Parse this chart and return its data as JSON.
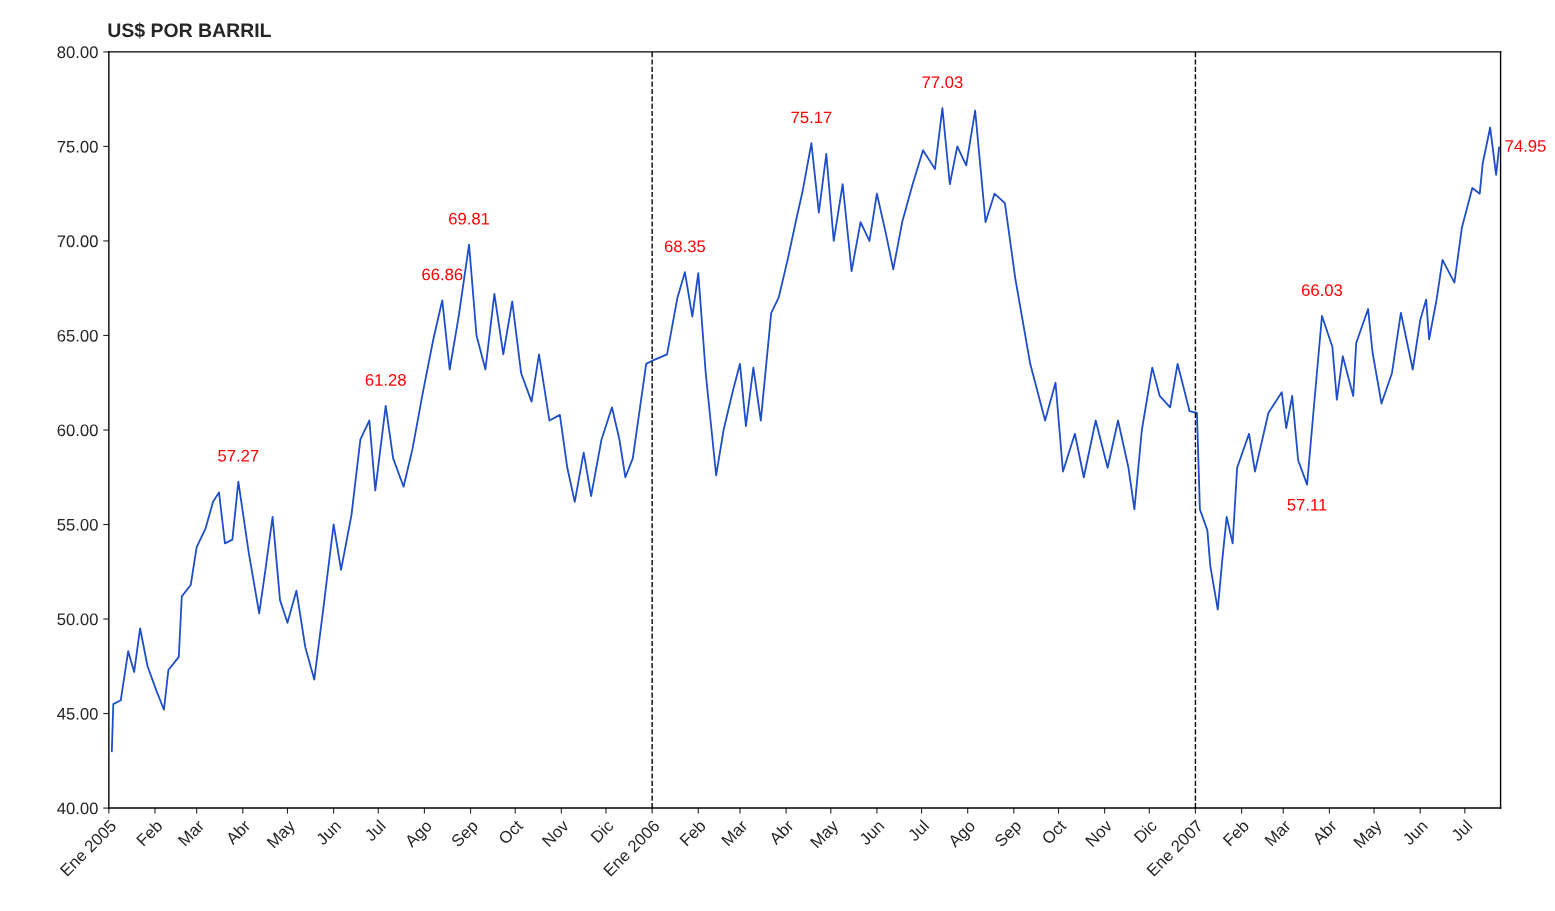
{
  "chart_data": {
    "type": "line",
    "title": "US$ POR BARRIL",
    "x": [
      "2005-01-03",
      "2005-01-04",
      "2005-01-09",
      "2005-01-14",
      "2005-01-18",
      "2005-01-22",
      "2005-01-27",
      "2005-02-02",
      "2005-02-07",
      "2005-02-10",
      "2005-02-17",
      "2005-02-19",
      "2005-02-25",
      "2005-03-01",
      "2005-03-07",
      "2005-03-12",
      "2005-03-16",
      "2005-03-20",
      "2005-03-25",
      "2005-03-29",
      "2005-04-05",
      "2005-04-12",
      "2005-04-16",
      "2005-04-21",
      "2005-04-26",
      "2005-05-01",
      "2005-05-07",
      "2005-05-13",
      "2005-05-19",
      "2005-05-25",
      "2005-06-01",
      "2005-06-06",
      "2005-06-13",
      "2005-06-19",
      "2005-06-25",
      "2005-06-29",
      "2005-07-06",
      "2005-07-11",
      "2005-07-18",
      "2005-07-24",
      "2005-07-31",
      "2005-08-07",
      "2005-08-13",
      "2005-08-18",
      "2005-08-24",
      "2005-08-31",
      "2005-09-05",
      "2005-09-11",
      "2005-09-17",
      "2005-09-23",
      "2005-09-29",
      "2005-10-05",
      "2005-10-12",
      "2005-10-17",
      "2005-10-24",
      "2005-10-31",
      "2005-11-05",
      "2005-11-10",
      "2005-11-16",
      "2005-11-21",
      "2005-11-28",
      "2005-12-05",
      "2005-12-10",
      "2005-12-14",
      "2005-12-19",
      "2005-12-28",
      "2006-01-02",
      "2006-01-11",
      "2006-01-18",
      "2006-01-23",
      "2006-01-28",
      "2006-02-01",
      "2006-02-06",
      "2006-02-13",
      "2006-02-18",
      "2006-02-24",
      "2006-03-01",
      "2006-03-05",
      "2006-03-10",
      "2006-03-15",
      "2006-03-22",
      "2006-03-27",
      "2006-04-02",
      "2006-04-08",
      "2006-04-12",
      "2006-04-18",
      "2006-04-23",
      "2006-04-28",
      "2006-05-03",
      "2006-05-09",
      "2006-05-15",
      "2006-05-21",
      "2006-05-27",
      "2006-06-01",
      "2006-06-07",
      "2006-06-12",
      "2006-06-18",
      "2006-06-25",
      "2006-07-02",
      "2006-07-10",
      "2006-07-15",
      "2006-07-20",
      "2006-07-25",
      "2006-07-31",
      "2006-08-06",
      "2006-08-13",
      "2006-08-19",
      "2006-08-26",
      "2006-09-02",
      "2006-09-12",
      "2006-09-22",
      "2006-09-29",
      "2006-10-04",
      "2006-10-12",
      "2006-10-18",
      "2006-10-26",
      "2006-11-03",
      "2006-11-10",
      "2006-11-17",
      "2006-11-21",
      "2006-11-26",
      "2006-12-03",
      "2006-12-08",
      "2006-12-15",
      "2006-12-20",
      "2006-12-28",
      "2007-01-02",
      "2007-01-04",
      "2007-01-09",
      "2007-01-11",
      "2007-01-16",
      "2007-01-19",
      "2007-01-22",
      "2007-01-26",
      "2007-01-29",
      "2007-02-02",
      "2007-02-06",
      "2007-02-10",
      "2007-02-19",
      "2007-02-28",
      "2007-03-03",
      "2007-03-07",
      "2007-03-11",
      "2007-03-17",
      "2007-03-21",
      "2007-03-27",
      "2007-04-03",
      "2007-04-06",
      "2007-04-10",
      "2007-04-17",
      "2007-04-19",
      "2007-04-27",
      "2007-04-30",
      "2007-05-06",
      "2007-05-13",
      "2007-05-19",
      "2007-05-27",
      "2007-06-01",
      "2007-06-05",
      "2007-06-07",
      "2007-06-12",
      "2007-06-16",
      "2007-06-24",
      "2007-06-29",
      "2007-07-06",
      "2007-07-11",
      "2007-07-13",
      "2007-07-18",
      "2007-07-22",
      "2007-07-24"
    ],
    "series": [
      {
        "color": "#1f4fc8",
        "values": [
          43.0,
          45.5,
          45.7,
          48.3,
          47.2,
          49.5,
          47.5,
          46.2,
          45.2,
          47.3,
          48.0,
          51.2,
          51.8,
          53.8,
          54.8,
          56.2,
          56.7,
          54.0,
          54.2,
          57.27,
          53.5,
          50.3,
          52.5,
          55.4,
          51.0,
          49.8,
          51.5,
          48.5,
          46.8,
          50.5,
          55.0,
          52.6,
          55.5,
          59.5,
          60.5,
          56.8,
          61.28,
          58.5,
          57.0,
          59.0,
          62.0,
          64.8,
          66.86,
          63.2,
          66.0,
          69.81,
          65.0,
          63.2,
          67.2,
          64.0,
          66.8,
          63.0,
          61.5,
          64.0,
          60.5,
          60.8,
          58.0,
          56.2,
          58.8,
          56.5,
          59.5,
          61.2,
          59.5,
          57.5,
          58.5,
          63.5,
          63.7,
          64.0,
          67.0,
          68.35,
          66.0,
          68.3,
          63.0,
          57.6,
          60.0,
          62.0,
          63.5,
          60.2,
          63.3,
          60.5,
          66.2,
          67.0,
          69.0,
          71.2,
          72.6,
          75.17,
          71.5,
          74.6,
          70.0,
          73.0,
          68.4,
          71.0,
          70.0,
          72.5,
          70.4,
          68.5,
          71.0,
          73.0,
          74.8,
          73.8,
          77.03,
          73.0,
          75.0,
          74.0,
          76.9,
          71.0,
          72.5,
          72.0,
          68.0,
          63.5,
          60.5,
          62.5,
          57.8,
          59.8,
          57.5,
          60.5,
          58.0,
          60.5,
          58.0,
          55.8,
          60.0,
          63.3,
          61.8,
          61.2,
          63.5,
          61.0,
          60.9,
          55.8,
          54.7,
          52.8,
          50.5,
          53.1,
          55.4,
          54.0,
          58.0,
          58.9,
          59.8,
          57.8,
          60.9,
          62.0,
          60.1,
          61.8,
          58.4,
          57.11,
          60.7,
          66.03,
          64.4,
          61.6,
          63.9,
          61.8,
          64.6,
          66.4,
          64.1,
          61.4,
          63.0,
          66.2,
          63.2,
          65.8,
          66.9,
          64.8,
          66.9,
          69.0,
          67.8,
          70.7,
          72.8,
          72.5,
          74.1,
          76.0,
          73.5,
          74.95
        ]
      }
    ],
    "xlim": [
      "2005-01-01",
      "2007-07-25"
    ],
    "xticks": [
      {
        "value": "2005-01-01",
        "label": "Ene 2005"
      },
      {
        "value": "2005-02-01",
        "label": "Feb"
      },
      {
        "value": "2005-03-01",
        "label": "Mar"
      },
      {
        "value": "2005-04-01",
        "label": "Abr"
      },
      {
        "value": "2005-05-01",
        "label": "May"
      },
      {
        "value": "2005-06-01",
        "label": "Jun"
      },
      {
        "value": "2005-07-01",
        "label": "Jul"
      },
      {
        "value": "2005-08-01",
        "label": "Ago"
      },
      {
        "value": "2005-09-01",
        "label": "Sep"
      },
      {
        "value": "2005-10-01",
        "label": "Oct"
      },
      {
        "value": "2005-11-01",
        "label": "Nov"
      },
      {
        "value": "2005-12-01",
        "label": "Dic"
      },
      {
        "value": "2006-01-01",
        "label": "Ene 2006"
      },
      {
        "value": "2006-02-01",
        "label": "Feb"
      },
      {
        "value": "2006-03-01",
        "label": "Mar"
      },
      {
        "value": "2006-04-01",
        "label": "Abr"
      },
      {
        "value": "2006-05-01",
        "label": "May"
      },
      {
        "value": "2006-06-01",
        "label": "Jun"
      },
      {
        "value": "2006-07-01",
        "label": "Jul"
      },
      {
        "value": "2006-08-01",
        "label": "Ago"
      },
      {
        "value": "2006-09-01",
        "label": "Sep"
      },
      {
        "value": "2006-10-01",
        "label": "Oct"
      },
      {
        "value": "2006-11-01",
        "label": "Nov"
      },
      {
        "value": "2006-12-01",
        "label": "Dic"
      },
      {
        "value": "2007-01-01",
        "label": "Ene 2007"
      },
      {
        "value": "2007-02-01",
        "label": "Feb"
      },
      {
        "value": "2007-03-01",
        "label": "Mar"
      },
      {
        "value": "2007-04-01",
        "label": "Abr"
      },
      {
        "value": "2007-05-01",
        "label": "May"
      },
      {
        "value": "2007-06-01",
        "label": "Jun"
      },
      {
        "value": "2007-07-01",
        "label": "Jul"
      }
    ],
    "ylim": [
      40,
      80
    ],
    "yticks": [
      {
        "value": 40,
        "label": "40.00"
      },
      {
        "value": 45,
        "label": "45.00"
      },
      {
        "value": 50,
        "label": "50.00"
      },
      {
        "value": 55,
        "label": "55.00"
      },
      {
        "value": 60,
        "label": "60.00"
      },
      {
        "value": 65,
        "label": "65.00"
      },
      {
        "value": 70,
        "label": "70.00"
      },
      {
        "value": 75,
        "label": "75.00"
      },
      {
        "value": 80,
        "label": "80.00"
      }
    ],
    "ref_lines": [
      {
        "axis": "x",
        "value": "2006-01-01",
        "color": "#000000",
        "line_style": "dashed"
      },
      {
        "axis": "x",
        "value": "2007-01-01",
        "color": "#000000",
        "line_style": "dashed"
      }
    ],
    "annotations": [
      {
        "text": "57.27",
        "x": "2005-03-29",
        "y": 57.27
      },
      {
        "text": "61.28",
        "x": "2005-07-06",
        "y": 61.28
      },
      {
        "text": "66.86",
        "x": "2005-08-13",
        "y": 66.86
      },
      {
        "text": "69.81",
        "x": "2005-08-31",
        "y": 69.81
      },
      {
        "text": "68.35",
        "x": "2006-01-23",
        "y": 68.35
      },
      {
        "text": "75.17",
        "x": "2006-04-18",
        "y": 75.17
      },
      {
        "text": "77.03",
        "x": "2006-07-15",
        "y": 77.03
      },
      {
        "text": "57.11",
        "x": "2007-03-17",
        "y": 57.11
      },
      {
        "text": "66.03",
        "x": "2007-03-27",
        "y": 66.03
      },
      {
        "text": "74.95",
        "x": "2007-07-24",
        "y": 74.95
      }
    ],
    "grid": false,
    "legend": false,
    "marker": "none",
    "line_style": "solid"
  }
}
